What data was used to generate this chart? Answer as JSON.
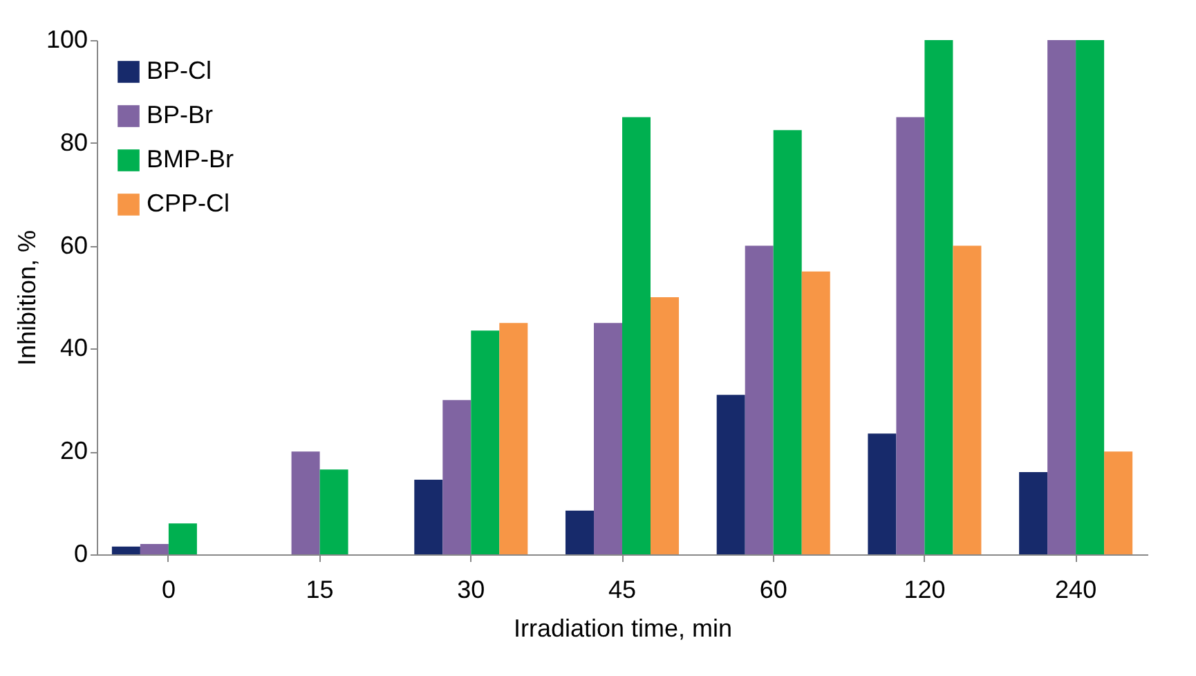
{
  "chart_data": {
    "type": "bar",
    "xlabel": "Irradiation time, min",
    "ylabel": "Inhibition, %",
    "categories": [
      "0",
      "15",
      "30",
      "45",
      "60",
      "120",
      "240"
    ],
    "series": [
      {
        "name": "BP-Cl",
        "color": "#172a6b",
        "values": [
          1.5,
          0,
          14.5,
          8.5,
          31,
          23.5,
          16
        ]
      },
      {
        "name": "BP-Br",
        "color": "#8064a2",
        "values": [
          2,
          20,
          30,
          45,
          60,
          85,
          100
        ]
      },
      {
        "name": "BMP-Br",
        "color": "#00b050",
        "values": [
          6,
          16.5,
          43.5,
          85,
          82.5,
          100,
          100
        ]
      },
      {
        "name": "CPP-Cl",
        "color": "#f79646",
        "values": [
          0,
          0,
          45,
          50,
          55,
          60,
          20
        ]
      }
    ],
    "ylim": [
      0,
      100
    ],
    "yticks": [
      0,
      20,
      40,
      60,
      80,
      100
    ],
    "grid": false,
    "legend": "top left"
  }
}
